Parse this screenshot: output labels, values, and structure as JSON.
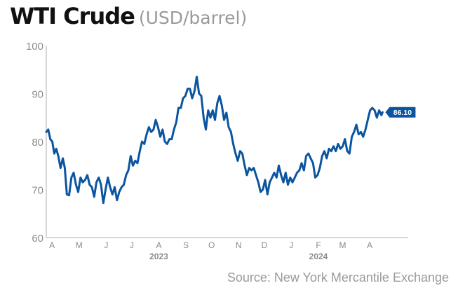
{
  "header": {
    "title": "WTI Crude",
    "subtitle": "(USD/barrel)"
  },
  "source": "Source: New York Mercantile Exchange",
  "colors": {
    "line": "#0b55a0",
    "axis": "#c8c8c8",
    "tick_text": "#8c8c8c",
    "badge": "#0b55a0"
  },
  "chart_data": {
    "type": "line",
    "ylim": [
      60,
      100
    ],
    "yticks": [
      60,
      70,
      80,
      90,
      100
    ],
    "xlim": [
      0,
      127
    ],
    "month_ticks": [
      {
        "label": "A",
        "x": 2
      },
      {
        "label": "M",
        "x": 11.5
      },
      {
        "label": "J",
        "x": 21
      },
      {
        "label": "J",
        "x": 30
      },
      {
        "label": "A",
        "x": 39.5
      },
      {
        "label": "S",
        "x": 49
      },
      {
        "label": "O",
        "x": 58
      },
      {
        "label": "N",
        "x": 67.5
      },
      {
        "label": "D",
        "x": 76.5
      },
      {
        "label": "J",
        "x": 86
      },
      {
        "label": "F",
        "x": 95.5
      },
      {
        "label": "M",
        "x": 104
      },
      {
        "label": "A",
        "x": 113.5
      }
    ],
    "year_labels": [
      {
        "label": "2023",
        "x": 39.5
      },
      {
        "label": "2024",
        "x": 95.5
      }
    ],
    "last_value_label": "86.10",
    "series": [
      {
        "values": [
          [
            0,
            82.0
          ],
          [
            0.7,
            82.5
          ],
          [
            1.4,
            80.5
          ],
          [
            2.1,
            80.0
          ],
          [
            2.8,
            77.5
          ],
          [
            3.5,
            78.5
          ],
          [
            4.2,
            77.0
          ],
          [
            5,
            74.5
          ],
          [
            5.8,
            76.5
          ],
          [
            6.5,
            74.5
          ],
          [
            7.2,
            69.0
          ],
          [
            8,
            68.8
          ],
          [
            8.8,
            72.5
          ],
          [
            9.6,
            73.5
          ],
          [
            10.4,
            71.0
          ],
          [
            11.2,
            69.5
          ],
          [
            12,
            72.5
          ],
          [
            12.8,
            71.5
          ],
          [
            13.6,
            72.0
          ],
          [
            14.4,
            73.0
          ],
          [
            15.2,
            71.0
          ],
          [
            16,
            70.5
          ],
          [
            16.8,
            68.5
          ],
          [
            17.6,
            71.5
          ],
          [
            18.4,
            72.5
          ],
          [
            19.2,
            71.0
          ],
          [
            20,
            67.2
          ],
          [
            20.8,
            70.0
          ],
          [
            21.6,
            72.5
          ],
          [
            22.4,
            70.5
          ],
          [
            23.2,
            69.0
          ],
          [
            24,
            70.5
          ],
          [
            24.8,
            67.8
          ],
          [
            25.6,
            69.5
          ],
          [
            26.4,
            70.5
          ],
          [
            27.2,
            71.0
          ],
          [
            28,
            73.0
          ],
          [
            28.8,
            74.0
          ],
          [
            29.6,
            77.0
          ],
          [
            30.4,
            75.0
          ],
          [
            31.2,
            76.0
          ],
          [
            32,
            75.5
          ],
          [
            32.8,
            78.0
          ],
          [
            33.6,
            80.0
          ],
          [
            34.4,
            79.5
          ],
          [
            35.2,
            81.5
          ],
          [
            36,
            83.0
          ],
          [
            36.8,
            82.0
          ],
          [
            37.6,
            82.5
          ],
          [
            38.4,
            84.5
          ],
          [
            39.2,
            83.0
          ],
          [
            40,
            81.0
          ],
          [
            40.8,
            82.5
          ],
          [
            41.6,
            80.0
          ],
          [
            42.4,
            79.5
          ],
          [
            43.2,
            80.5
          ],
          [
            44,
            80.5
          ],
          [
            44.8,
            82.5
          ],
          [
            45.6,
            84.0
          ],
          [
            46.4,
            87.0
          ],
          [
            47.2,
            87.0
          ],
          [
            48,
            89.0
          ],
          [
            48.8,
            89.5
          ],
          [
            49.6,
            91.0
          ],
          [
            50.4,
            91.0
          ],
          [
            51.2,
            89.0
          ],
          [
            52,
            90.5
          ],
          [
            52.8,
            93.5
          ],
          [
            53.6,
            90.0
          ],
          [
            54.4,
            89.5
          ],
          [
            55.2,
            85.0
          ],
          [
            56,
            82.5
          ],
          [
            56.8,
            86.5
          ],
          [
            57.6,
            85.0
          ],
          [
            58.4,
            86.5
          ],
          [
            59.2,
            84.5
          ],
          [
            60,
            88.0
          ],
          [
            60.8,
            89.5
          ],
          [
            61.6,
            87.5
          ],
          [
            62.4,
            84.5
          ],
          [
            63.2,
            86.0
          ],
          [
            64,
            83.0
          ],
          [
            64.8,
            82.0
          ],
          [
            65.6,
            79.5
          ],
          [
            66.4,
            77.5
          ],
          [
            67.2,
            76.0
          ],
          [
            68,
            78.0
          ],
          [
            68.8,
            77.5
          ],
          [
            69.6,
            75.0
          ],
          [
            70.4,
            73.0
          ],
          [
            71.2,
            74.5
          ],
          [
            72,
            74.0
          ],
          [
            72.8,
            74.5
          ],
          [
            73.6,
            73.0
          ],
          [
            74.4,
            71.5
          ],
          [
            75.2,
            69.5
          ],
          [
            76,
            70.0
          ],
          [
            76.8,
            72.0
          ],
          [
            77.6,
            69.0
          ],
          [
            78.4,
            71.5
          ],
          [
            79.2,
            72.5
          ],
          [
            80,
            73.5
          ],
          [
            80.8,
            72.5
          ],
          [
            81.6,
            75.0
          ],
          [
            82.4,
            73.0
          ],
          [
            83.2,
            71.5
          ],
          [
            84,
            73.5
          ],
          [
            84.8,
            71.0
          ],
          [
            85.6,
            72.5
          ],
          [
            86.4,
            71.5
          ],
          [
            87.2,
            72.5
          ],
          [
            88,
            73.5
          ],
          [
            88.8,
            74.0
          ],
          [
            89.6,
            75.5
          ],
          [
            90.4,
            74.0
          ],
          [
            91.2,
            77.0
          ],
          [
            92,
            77.5
          ],
          [
            92.8,
            76.5
          ],
          [
            93.6,
            75.5
          ],
          [
            94.4,
            72.5
          ],
          [
            95.2,
            73.0
          ],
          [
            96,
            74.5
          ],
          [
            96.8,
            77.0
          ],
          [
            97.6,
            78.0
          ],
          [
            98.4,
            76.5
          ],
          [
            99.2,
            78.5
          ],
          [
            100,
            78.0
          ],
          [
            100.8,
            79.0
          ],
          [
            101.6,
            78.0
          ],
          [
            102.4,
            79.5
          ],
          [
            103.2,
            78.5
          ],
          [
            104,
            79.0
          ],
          [
            104.8,
            80.5
          ],
          [
            105.6,
            78.0
          ],
          [
            106.4,
            77.5
          ],
          [
            107.2,
            81.0
          ],
          [
            108,
            82.0
          ],
          [
            108.8,
            83.5
          ],
          [
            109.6,
            81.5
          ],
          [
            110.4,
            82.0
          ],
          [
            111.2,
            81.0
          ],
          [
            112,
            82.5
          ],
          [
            112.8,
            84.5
          ],
          [
            113.6,
            86.5
          ],
          [
            114.4,
            87.0
          ],
          [
            115.2,
            86.5
          ],
          [
            116,
            85.0
          ],
          [
            116.8,
            86.5
          ],
          [
            117.6,
            85.5
          ],
          [
            118,
            86.1
          ]
        ]
      }
    ]
  }
}
